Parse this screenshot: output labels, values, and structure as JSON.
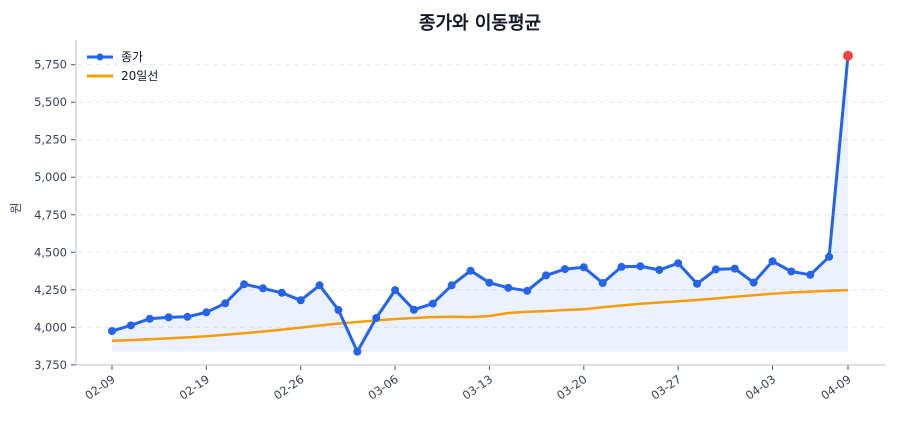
{
  "chart_data": {
    "type": "line",
    "title": "종가와 이동평균",
    "xlabel": "",
    "ylabel": "원",
    "ylim": [
      3750,
      5900
    ],
    "yticks": [
      3750,
      4000,
      4250,
      4500,
      4750,
      5000,
      5250,
      5500,
      5750
    ],
    "ytick_labels": [
      "3,750",
      "4,000",
      "4,250",
      "4,500",
      "4,750",
      "5,000",
      "5,250",
      "5,500",
      "5,750"
    ],
    "xtick_labels": [
      "02-09",
      "02-19",
      "02-26",
      "03-06",
      "03-13",
      "03-20",
      "03-27",
      "04-03",
      "04-09"
    ],
    "grid": true,
    "legend_position": "upper left",
    "x": [
      "02-09",
      "02-10",
      "02-11",
      "02-12",
      "02-13",
      "02-19",
      "02-20",
      "02-23",
      "02-24",
      "02-25",
      "02-26",
      "02-27",
      "03-03",
      "03-04",
      "03-05",
      "03-06",
      "03-09",
      "03-10",
      "03-11",
      "03-12",
      "03-13",
      "03-16",
      "03-17",
      "03-18",
      "03-19",
      "03-20",
      "03-23",
      "03-24",
      "03-25",
      "03-26",
      "03-27",
      "03-30",
      "03-31",
      "04-01",
      "04-02",
      "04-03",
      "04-06",
      "04-07",
      "04-08",
      "04-09"
    ],
    "series": [
      {
        "name": "종가",
        "color": "#2563eb",
        "marker": "circle",
        "fill": true,
        "values": [
          3975,
          4013,
          4057,
          4067,
          4070,
          4100,
          4160,
          4287,
          4260,
          4230,
          4180,
          4280,
          4115,
          3838,
          4062,
          4248,
          4117,
          4158,
          4280,
          4377,
          4297,
          4263,
          4243,
          4346,
          4388,
          4400,
          4295,
          4403,
          4407,
          4382,
          4427,
          4290,
          4386,
          4391,
          4298,
          4440,
          4372,
          4350,
          4470,
          5810
        ]
      },
      {
        "name": "20일선",
        "color": "#f59e0b",
        "marker": "none",
        "values": [
          3910,
          3915,
          3920,
          3926,
          3933,
          3941,
          3950,
          3960,
          3972,
          3985,
          3998,
          4012,
          4025,
          4035,
          4045,
          4055,
          4062,
          4068,
          4070,
          4068,
          4075,
          4095,
          4103,
          4108,
          4115,
          4120,
          4133,
          4145,
          4157,
          4165,
          4173,
          4182,
          4192,
          4203,
          4213,
          4223,
          4232,
          4238,
          4243,
          4248
        ]
      }
    ],
    "annotations": [
      {
        "type": "highlight-point",
        "index": 39,
        "value": 5810,
        "color": "#ef4444"
      }
    ]
  }
}
